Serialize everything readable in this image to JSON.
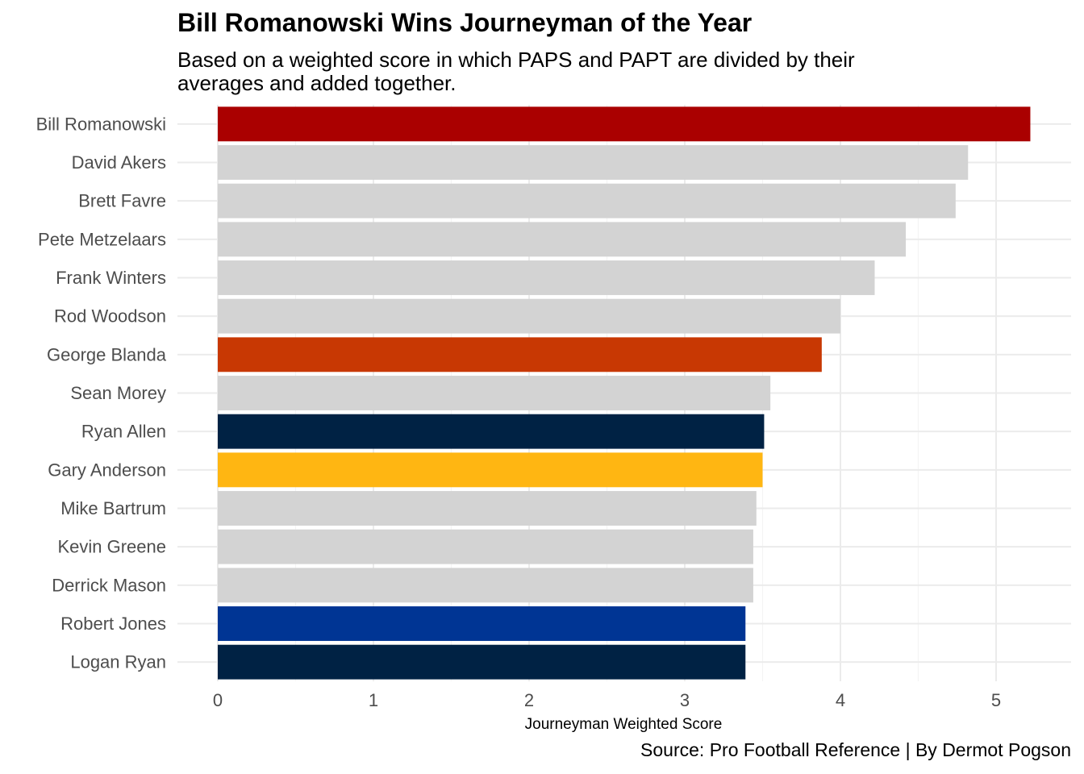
{
  "chart_data": {
    "type": "bar",
    "orientation": "horizontal",
    "title": "Bill Romanowski Wins Journeyman of the Year",
    "subtitle": "Based on a weighted score in which PAPS and PAPT are divided by their averages and added together.",
    "xlabel": "Journeyman Weighted Score",
    "ylabel": "",
    "caption": "Source: Pro Football Reference | By Dermot Pogson",
    "xlim": [
      0,
      5.4
    ],
    "xticks": [
      0,
      1,
      2,
      3,
      4,
      5
    ],
    "grid": true,
    "categories": [
      "Bill Romanowski",
      "David Akers",
      "Brett Favre",
      "Pete Metzelaars",
      "Frank Winters",
      "Rod Woodson",
      "George Blanda",
      "Sean Morey",
      "Ryan Allen",
      "Gary Anderson",
      "Mike Bartrum",
      "Kevin Greene",
      "Derrick Mason",
      "Robert Jones",
      "Logan Ryan"
    ],
    "values": [
      5.22,
      4.82,
      4.74,
      4.42,
      4.22,
      4.0,
      3.88,
      3.55,
      3.51,
      3.5,
      3.46,
      3.44,
      3.44,
      3.39,
      3.39
    ],
    "colors": [
      "#AA0000",
      "#D3D3D3",
      "#D3D3D3",
      "#D3D3D3",
      "#D3D3D3",
      "#D3D3D3",
      "#C83803",
      "#D3D3D3",
      "#002244",
      "#FFB612",
      "#D3D3D3",
      "#D3D3D3",
      "#D3D3D3",
      "#003594",
      "#002244"
    ]
  }
}
